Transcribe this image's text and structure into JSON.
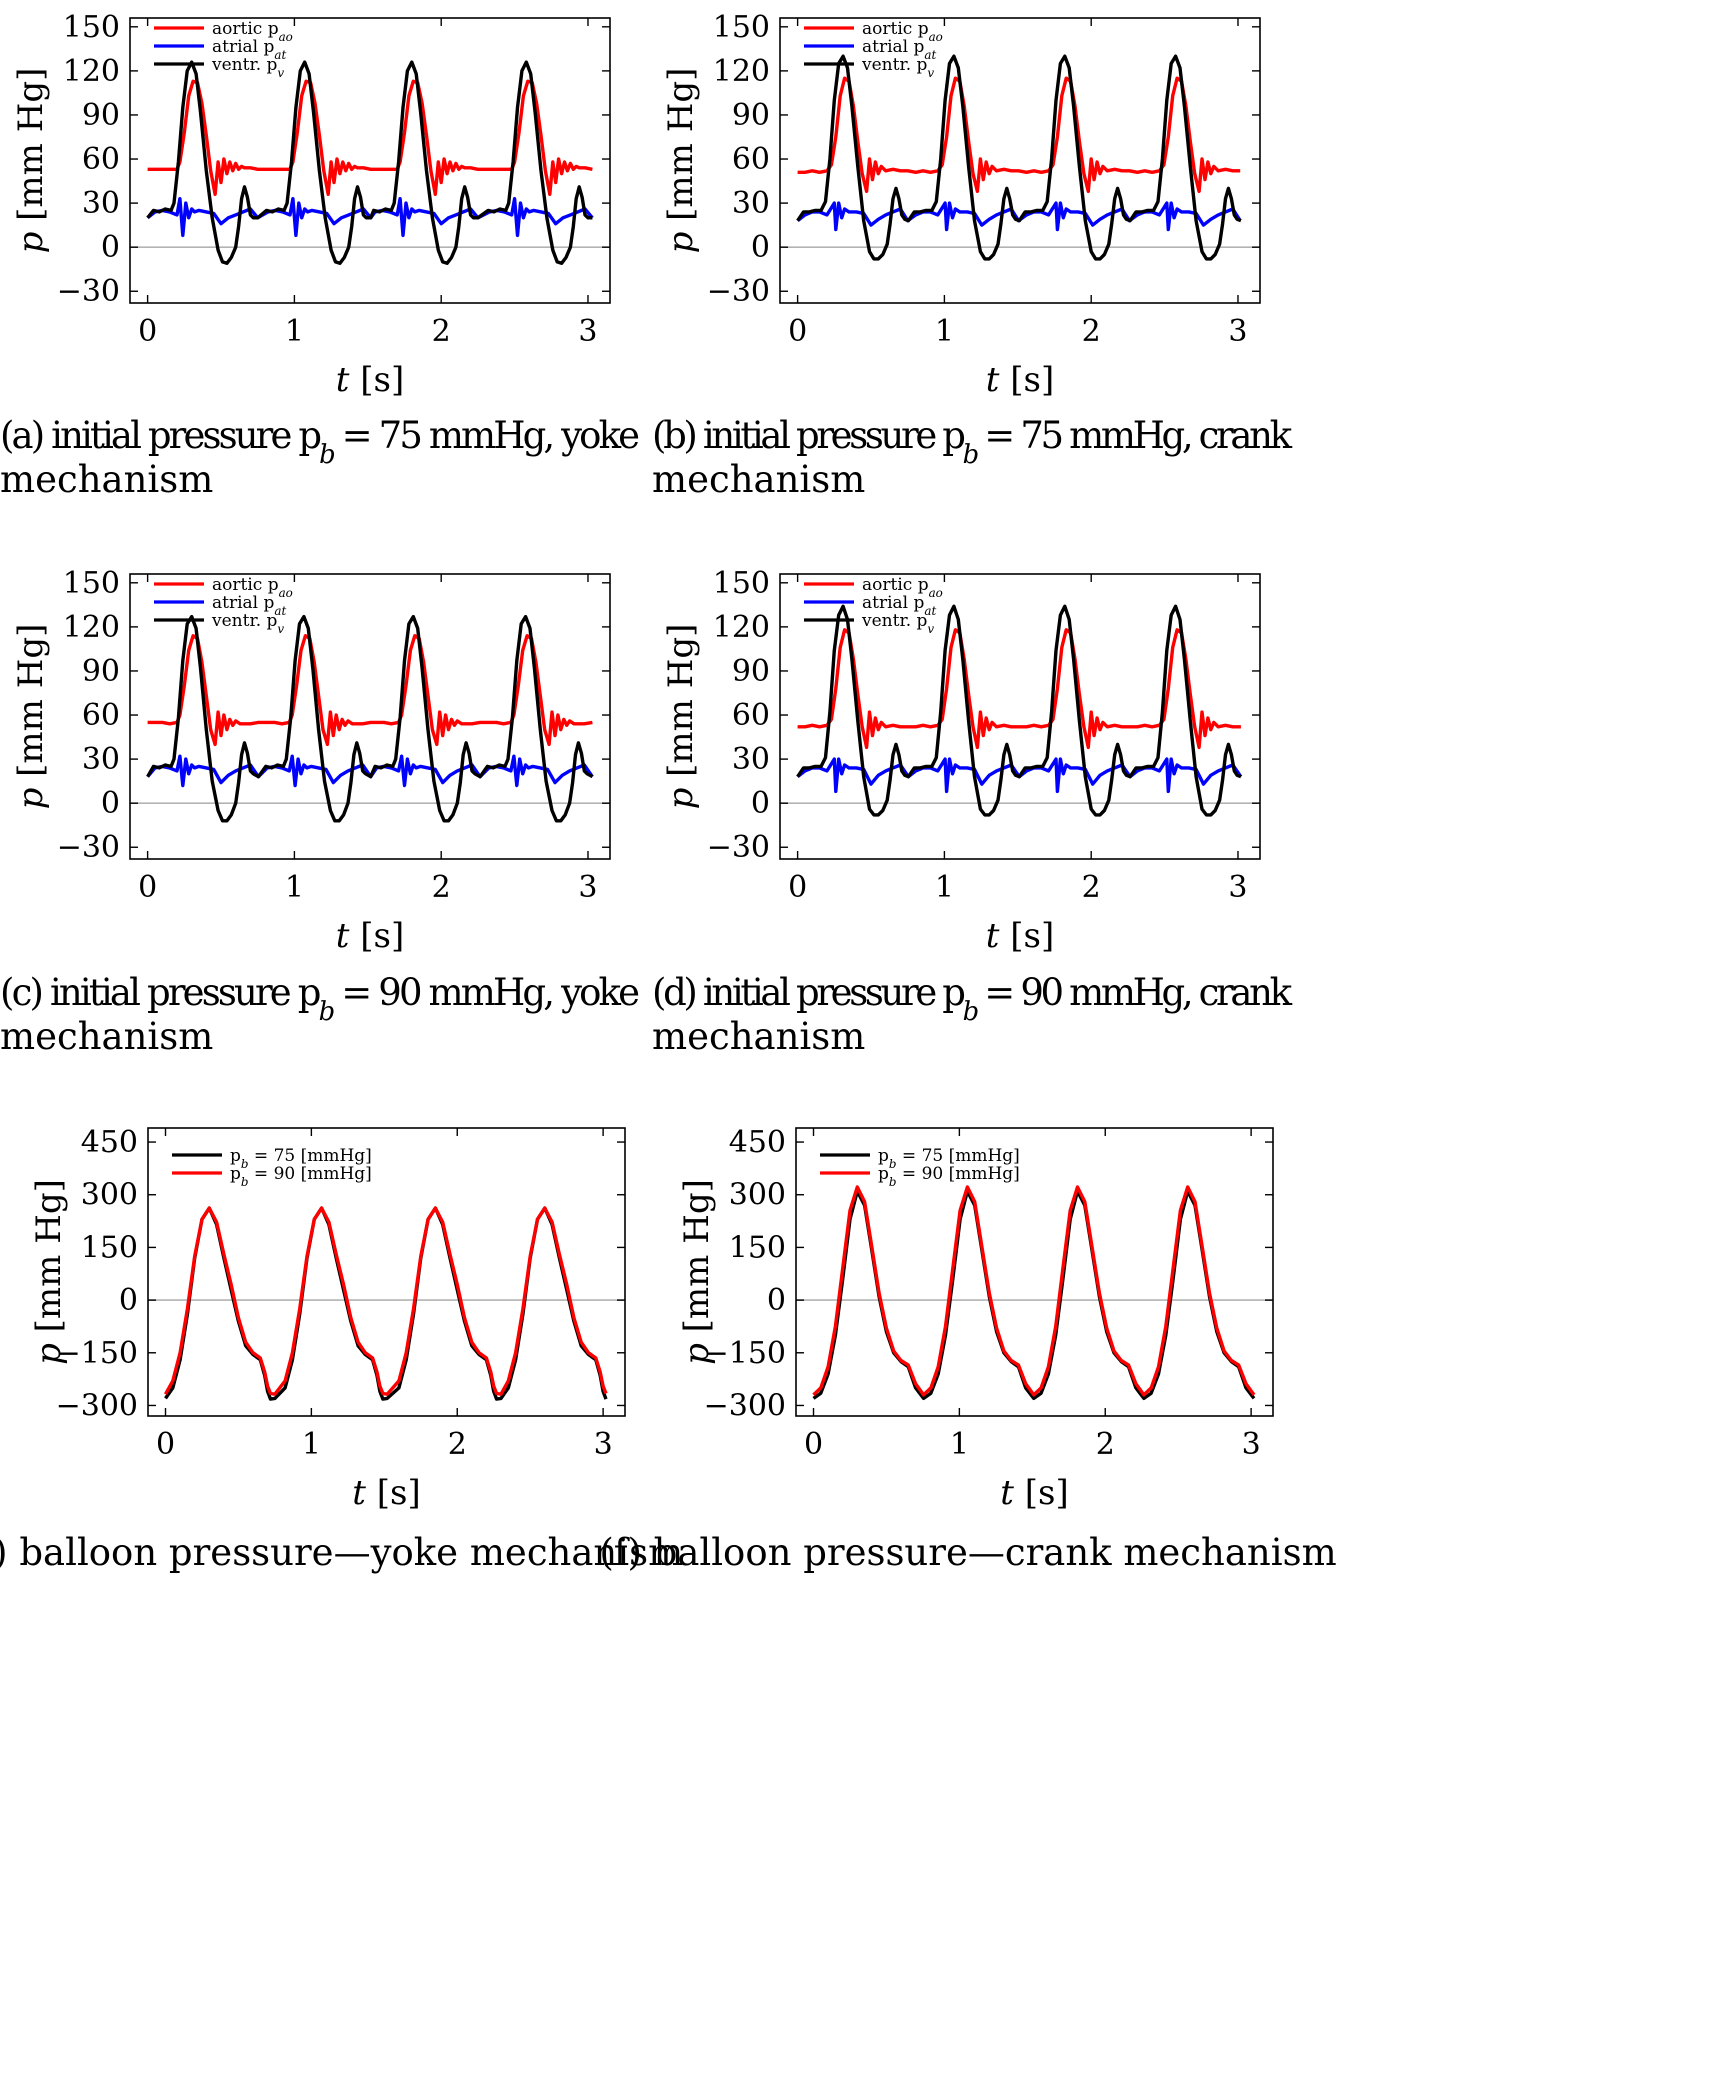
{
  "chart_data": [
    {
      "id": "a",
      "type": "line",
      "caption": [
        "(a) initial pressure p_b = 75 mmHg, yoke",
        "mechanism"
      ],
      "xlabel": "t [s]",
      "ylabel": "p [mm Hg]",
      "xlim": [
        -0.12,
        3.15
      ],
      "ylim": [
        -38,
        156
      ],
      "xticks": [
        0,
        1,
        2,
        3
      ],
      "yticks": [
        150,
        120,
        90,
        60,
        30,
        0,
        -30
      ],
      "ytick_labels": [
        "150",
        "120",
        "90",
        "60",
        "30",
        "0",
        "−30"
      ],
      "zero_line": true,
      "legend_position": "top-left",
      "period": 0.75,
      "phase_shift": [
        0,
        0.02,
        0,
        0.03
      ],
      "series": [
        {
          "name": "aortic p_ao",
          "color": "#ff0000",
          "x": [
            0,
            0.05,
            0.1,
            0.15,
            0.2,
            0.22,
            0.25,
            0.28,
            0.31,
            0.34,
            0.37,
            0.4,
            0.43,
            0.46,
            0.48,
            0.5,
            0.52,
            0.54,
            0.56,
            0.58,
            0.6,
            0.62,
            0.64,
            0.66,
            0.7,
            0.75
          ],
          "values": [
            53,
            53,
            53,
            53,
            53,
            58,
            78,
            103,
            113,
            112,
            98,
            76,
            52,
            36,
            58,
            44,
            60,
            50,
            58,
            52,
            57,
            53,
            55,
            54,
            54,
            53
          ]
        },
        {
          "name": "atrial p_at",
          "color": "#0000ff",
          "x": [
            0,
            0.05,
            0.1,
            0.15,
            0.2,
            0.22,
            0.24,
            0.26,
            0.28,
            0.3,
            0.32,
            0.35,
            0.4,
            0.45,
            0.5,
            0.55,
            0.6,
            0.65,
            0.7,
            0.75
          ],
          "values": [
            20,
            24,
            25,
            24,
            22,
            33,
            8,
            30,
            20,
            26,
            24,
            25,
            24,
            23,
            16,
            20,
            22,
            24,
            26,
            20
          ]
        },
        {
          "name": "ventr. p_v",
          "color": "#000000",
          "x": [
            0,
            0.04,
            0.08,
            0.12,
            0.16,
            0.18,
            0.21,
            0.24,
            0.27,
            0.3,
            0.33,
            0.36,
            0.4,
            0.44,
            0.48,
            0.51,
            0.54,
            0.57,
            0.6,
            0.62,
            0.64,
            0.66,
            0.68,
            0.7,
            0.72,
            0.75
          ],
          "values": [
            20,
            25,
            24,
            26,
            25,
            30,
            58,
            95,
            120,
            126,
            118,
            92,
            52,
            20,
            -2,
            -10,
            -11,
            -7,
            0,
            14,
            33,
            41,
            34,
            22,
            20,
            20
          ]
        }
      ]
    },
    {
      "id": "b",
      "type": "line",
      "caption": [
        "(b) initial pressure p_b = 75 mmHg, crank",
        "mechanism"
      ],
      "xlabel": "t [s]",
      "ylabel": "p [mm Hg]",
      "xlim": [
        -0.12,
        3.15
      ],
      "ylim": [
        -38,
        156
      ],
      "xticks": [
        0,
        1,
        2,
        3
      ],
      "yticks": [
        150,
        120,
        90,
        60,
        30,
        0,
        -30
      ],
      "ytick_labels": [
        "150",
        "120",
        "90",
        "60",
        "30",
        "0",
        "−30"
      ],
      "zero_line": true,
      "legend_position": "top-left",
      "period": 0.755,
      "phase_shift": [
        0,
        0,
        0,
        0
      ],
      "series": [
        {
          "name": "aortic p_ao",
          "color": "#ff0000",
          "x": [
            0,
            0.05,
            0.1,
            0.15,
            0.2,
            0.23,
            0.26,
            0.29,
            0.32,
            0.35,
            0.38,
            0.41,
            0.44,
            0.47,
            0.49,
            0.51,
            0.53,
            0.55,
            0.57,
            0.6,
            0.65,
            0.7,
            0.75
          ],
          "values": [
            51,
            51,
            52,
            51,
            52,
            56,
            75,
            103,
            115,
            113,
            96,
            72,
            50,
            38,
            60,
            46,
            58,
            50,
            55,
            52,
            53,
            52,
            52
          ]
        },
        {
          "name": "atrial p_at",
          "color": "#0000ff",
          "x": [
            0,
            0.05,
            0.1,
            0.15,
            0.2,
            0.25,
            0.26,
            0.28,
            0.3,
            0.32,
            0.35,
            0.4,
            0.45,
            0.5,
            0.55,
            0.6,
            0.65,
            0.7,
            0.75
          ],
          "values": [
            18,
            22,
            24,
            24,
            22,
            30,
            12,
            30,
            20,
            26,
            24,
            24,
            23,
            15,
            19,
            22,
            24,
            26,
            18
          ]
        },
        {
          "name": "ventr. p_v",
          "color": "#000000",
          "x": [
            0,
            0.04,
            0.08,
            0.12,
            0.16,
            0.19,
            0.22,
            0.25,
            0.28,
            0.31,
            0.34,
            0.37,
            0.41,
            0.45,
            0.49,
            0.52,
            0.55,
            0.58,
            0.61,
            0.63,
            0.65,
            0.67,
            0.69,
            0.71,
            0.73,
            0.755
          ],
          "values": [
            18,
            24,
            24,
            25,
            25,
            31,
            60,
            100,
            125,
            130,
            122,
            96,
            55,
            18,
            -3,
            -8,
            -8,
            -5,
            2,
            16,
            33,
            40,
            33,
            22,
            19,
            18
          ]
        }
      ]
    },
    {
      "id": "c",
      "type": "line",
      "caption": [
        "(c) initial pressure p_b = 90 mmHg, yoke",
        "mechanism"
      ],
      "xlabel": "t [s]",
      "ylabel": "p [mm Hg]",
      "xlim": [
        -0.12,
        3.15
      ],
      "ylim": [
        -38,
        156
      ],
      "xticks": [
        0,
        1,
        2,
        3
      ],
      "yticks": [
        150,
        120,
        90,
        60,
        30,
        0,
        -30
      ],
      "ytick_labels": [
        "150",
        "120",
        "90",
        "60",
        "30",
        "0",
        "−30"
      ],
      "zero_line": true,
      "legend_position": "top-left",
      "period": 0.755,
      "phase_shift": [
        0,
        0.01,
        0,
        0.01
      ],
      "series": [
        {
          "name": "aortic p_ao",
          "color": "#ff0000",
          "x": [
            0,
            0.05,
            0.1,
            0.15,
            0.2,
            0.22,
            0.25,
            0.28,
            0.31,
            0.34,
            0.37,
            0.4,
            0.43,
            0.46,
            0.48,
            0.5,
            0.52,
            0.54,
            0.56,
            0.58,
            0.6,
            0.63,
            0.66,
            0.7,
            0.755
          ],
          "values": [
            55,
            55,
            55,
            54,
            55,
            60,
            80,
            104,
            114,
            112,
            96,
            73,
            50,
            40,
            62,
            46,
            60,
            50,
            57,
            53,
            56,
            54,
            54,
            54,
            55
          ]
        },
        {
          "name": "atrial p_at",
          "color": "#0000ff",
          "x": [
            0,
            0.05,
            0.1,
            0.15,
            0.2,
            0.22,
            0.24,
            0.26,
            0.28,
            0.3,
            0.32,
            0.35,
            0.4,
            0.45,
            0.5,
            0.55,
            0.6,
            0.65,
            0.7,
            0.755
          ],
          "values": [
            18,
            24,
            25,
            24,
            22,
            32,
            12,
            30,
            20,
            26,
            24,
            25,
            24,
            23,
            14,
            19,
            22,
            24,
            26,
            18
          ]
        },
        {
          "name": "ventr. p_v",
          "color": "#000000",
          "x": [
            0,
            0.04,
            0.08,
            0.12,
            0.16,
            0.18,
            0.21,
            0.24,
            0.27,
            0.3,
            0.33,
            0.36,
            0.4,
            0.44,
            0.48,
            0.51,
            0.54,
            0.57,
            0.6,
            0.62,
            0.64,
            0.66,
            0.68,
            0.7,
            0.72,
            0.755
          ],
          "values": [
            18,
            25,
            24,
            26,
            25,
            30,
            58,
            97,
            122,
            127,
            119,
            92,
            50,
            15,
            -5,
            -12,
            -12,
            -8,
            0,
            14,
            33,
            41,
            34,
            22,
            20,
            18
          ]
        }
      ]
    },
    {
      "id": "d",
      "type": "line",
      "caption": [
        "(d) initial pressure p_b = 90 mmHg, crank",
        "mechanism"
      ],
      "xlabel": "t [s]",
      "ylabel": "p [mm Hg]",
      "xlim": [
        -0.12,
        3.15
      ],
      "ylim": [
        -38,
        156
      ],
      "xticks": [
        0,
        1,
        2,
        3
      ],
      "yticks": [
        150,
        120,
        90,
        60,
        30,
        0,
        -30
      ],
      "ytick_labels": [
        "150",
        "120",
        "90",
        "60",
        "30",
        "0",
        "−30"
      ],
      "zero_line": true,
      "legend_position": "top-left",
      "period": 0.755,
      "phase_shift": [
        0,
        0,
        0,
        0
      ],
      "series": [
        {
          "name": "aortic p_ao",
          "color": "#ff0000",
          "x": [
            0,
            0.05,
            0.1,
            0.15,
            0.2,
            0.23,
            0.26,
            0.29,
            0.32,
            0.35,
            0.38,
            0.41,
            0.44,
            0.47,
            0.49,
            0.51,
            0.53,
            0.55,
            0.57,
            0.6,
            0.65,
            0.7,
            0.755
          ],
          "values": [
            52,
            52,
            53,
            52,
            53,
            57,
            78,
            106,
            118,
            116,
            98,
            74,
            52,
            38,
            62,
            46,
            58,
            50,
            55,
            52,
            53,
            52,
            52
          ]
        },
        {
          "name": "atrial p_at",
          "color": "#0000ff",
          "x": [
            0,
            0.05,
            0.1,
            0.15,
            0.2,
            0.25,
            0.26,
            0.28,
            0.3,
            0.32,
            0.35,
            0.4,
            0.45,
            0.5,
            0.55,
            0.6,
            0.65,
            0.7,
            0.755
          ],
          "values": [
            18,
            22,
            24,
            24,
            22,
            30,
            8,
            30,
            20,
            26,
            24,
            24,
            23,
            13,
            19,
            22,
            24,
            26,
            18
          ]
        },
        {
          "name": "ventr. p_v",
          "color": "#000000",
          "x": [
            0,
            0.04,
            0.08,
            0.12,
            0.16,
            0.19,
            0.22,
            0.25,
            0.28,
            0.31,
            0.34,
            0.37,
            0.41,
            0.45,
            0.49,
            0.52,
            0.55,
            0.58,
            0.61,
            0.63,
            0.65,
            0.67,
            0.69,
            0.71,
            0.73,
            0.755
          ],
          "values": [
            18,
            24,
            24,
            25,
            25,
            31,
            62,
            104,
            128,
            134,
            125,
            98,
            56,
            18,
            -4,
            -8,
            -8,
            -5,
            2,
            16,
            33,
            40,
            33,
            22,
            19,
            18
          ]
        }
      ]
    },
    {
      "id": "e",
      "type": "line",
      "caption": [
        "(e) balloon pressure—yoke mechanism"
      ],
      "xlabel": "t [s]",
      "ylabel": "p [mm Hg]",
      "xlim": [
        -0.12,
        3.15
      ],
      "ylim": [
        -330,
        490
      ],
      "xticks": [
        0,
        1,
        2,
        3
      ],
      "yticks": [
        450,
        300,
        150,
        0,
        -150,
        -300
      ],
      "ytick_labels": [
        "450",
        "300",
        "150",
        "0",
        "−150",
        "−300"
      ],
      "zero_line": true,
      "legend_position": "top-left",
      "period": 0.75,
      "phase_shift": [
        0,
        0.02,
        0.05,
        0.05
      ],
      "series": [
        {
          "name": "p_b = 75 [mmHg]",
          "color": "#000000",
          "x": [
            0,
            0.05,
            0.1,
            0.15,
            0.2,
            0.25,
            0.3,
            0.35,
            0.4,
            0.45,
            0.5,
            0.55,
            0.6,
            0.65,
            0.68,
            0.7,
            0.72,
            0.75
          ],
          "values": [
            -280,
            -250,
            -170,
            -40,
            120,
            230,
            262,
            215,
            120,
            30,
            -60,
            -130,
            -155,
            -170,
            -215,
            -260,
            -282,
            -280
          ]
        },
        {
          "name": "p_b = 90 [mmHg]",
          "color": "#ff0000",
          "x": [
            0,
            0.05,
            0.1,
            0.15,
            0.2,
            0.25,
            0.3,
            0.35,
            0.4,
            0.45,
            0.5,
            0.55,
            0.6,
            0.65,
            0.68,
            0.7,
            0.72,
            0.75
          ],
          "values": [
            -268,
            -230,
            -150,
            -25,
            125,
            230,
            262,
            222,
            130,
            45,
            -50,
            -120,
            -150,
            -165,
            -205,
            -245,
            -266,
            -268
          ]
        }
      ]
    },
    {
      "id": "f",
      "type": "line",
      "caption": [
        "(f) balloon pressure—crank mechanism"
      ],
      "xlabel": "t [s]",
      "ylabel": "p [mm Hg]",
      "xlim": [
        -0.12,
        3.15
      ],
      "ylim": [
        -330,
        490
      ],
      "xticks": [
        0,
        1,
        2,
        3
      ],
      "yticks": [
        450,
        300,
        150,
        0,
        -150,
        -300
      ],
      "ytick_labels": [
        "450",
        "300",
        "150",
        "0",
        "−150",
        "−300"
      ],
      "zero_line": true,
      "legend_position": "top-left",
      "period": 0.755,
      "phase_shift": [
        0,
        0,
        0,
        0
      ],
      "series": [
        {
          "name": "p_b = 75 [mmHg]",
          "color": "#000000",
          "x": [
            0,
            0.05,
            0.1,
            0.15,
            0.2,
            0.25,
            0.3,
            0.35,
            0.4,
            0.45,
            0.5,
            0.55,
            0.6,
            0.65,
            0.7,
            0.755
          ],
          "values": [
            -280,
            -265,
            -210,
            -100,
            60,
            230,
            310,
            270,
            140,
            10,
            -90,
            -150,
            -175,
            -190,
            -250,
            -280
          ]
        },
        {
          "name": "p_b = 90 [mmHg]",
          "color": "#ff0000",
          "x": [
            0,
            0.05,
            0.1,
            0.15,
            0.2,
            0.25,
            0.3,
            0.35,
            0.4,
            0.45,
            0.5,
            0.55,
            0.6,
            0.65,
            0.7,
            0.755
          ],
          "values": [
            -270,
            -250,
            -190,
            -75,
            90,
            255,
            322,
            280,
            150,
            20,
            -80,
            -145,
            -172,
            -185,
            -238,
            -270
          ]
        }
      ]
    }
  ]
}
